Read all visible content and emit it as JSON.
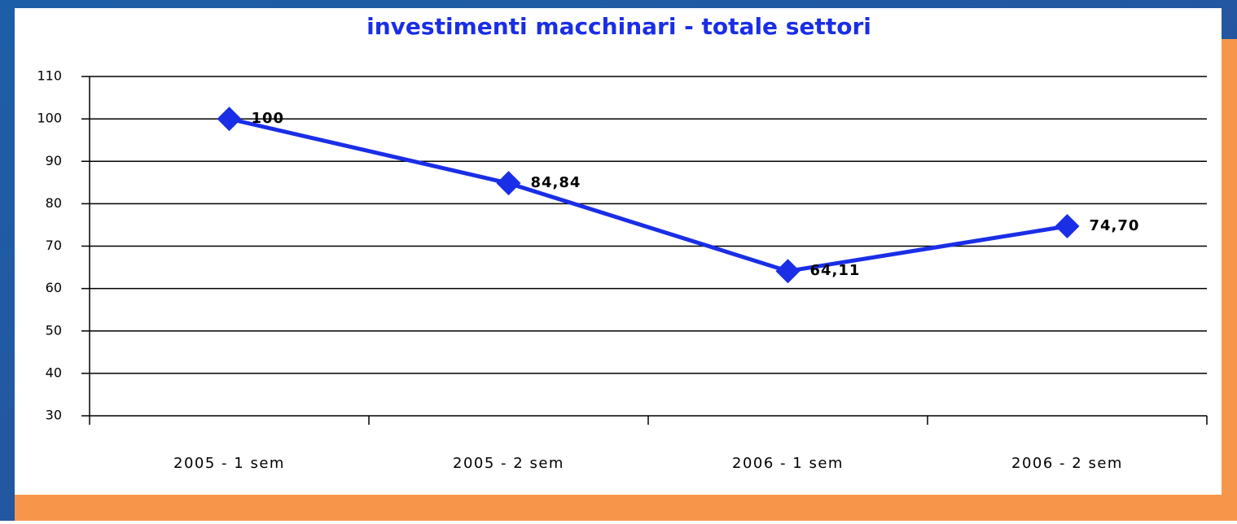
{
  "chart_data": {
    "type": "line",
    "title": "investimenti macchinari - totale settori",
    "categories": [
      "2005 - 1 sem",
      "2005 - 2 sem",
      "2006 - 1 sem",
      "2006 - 2 sem"
    ],
    "series": [
      {
        "name": "investimenti macchinari",
        "color": "#1a2ee6",
        "values": [
          100,
          84.84,
          64.11,
          74.7
        ],
        "value_labels": [
          "100",
          "84,84",
          "64,11",
          "74,70"
        ]
      }
    ],
    "ylim": [
      30,
      110
    ],
    "yticks": [
      30,
      40,
      50,
      60,
      70,
      80,
      90,
      100,
      110
    ],
    "grid": true
  }
}
